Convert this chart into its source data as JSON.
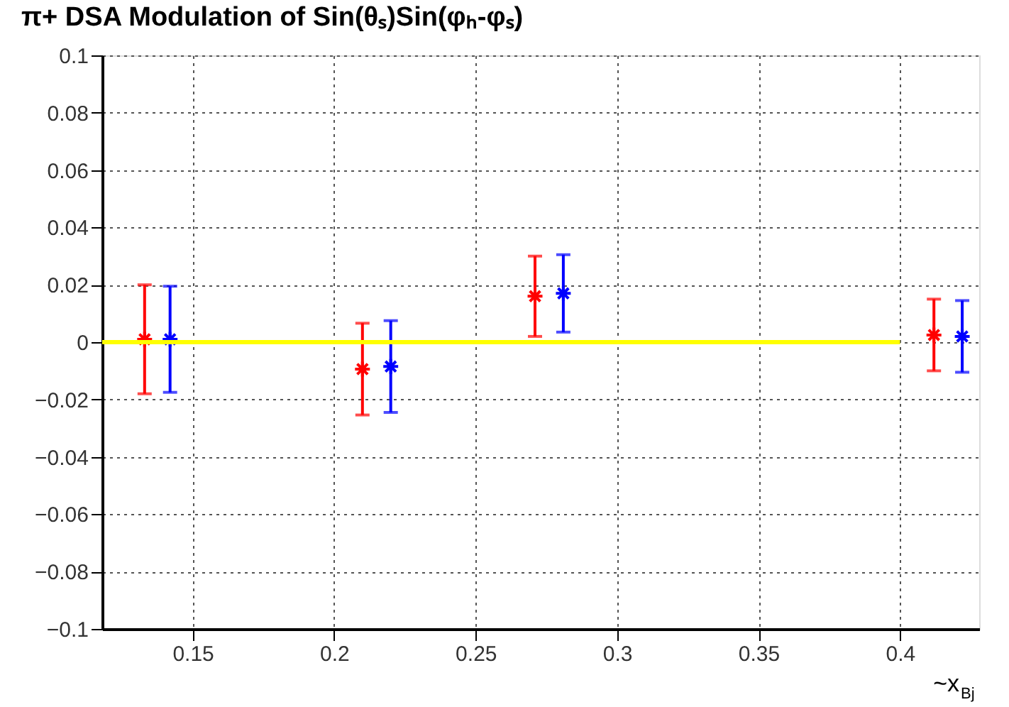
{
  "chart_data": {
    "type": "scatter",
    "title": "π+ DSA Modulation of Sin(θₛ)Sin(φₕ-φₛ)",
    "xlabel": "~x$_{Bj}$",
    "xlim": [
      0.118,
      0.428
    ],
    "xticks": [
      0.15,
      0.2,
      0.25,
      0.3,
      0.35,
      0.4
    ],
    "ylim": [
      -0.1,
      0.1
    ],
    "yticks": [
      -0.1,
      -0.08,
      -0.06,
      -0.04,
      -0.02,
      0,
      0.02,
      0.04,
      0.06,
      0.08,
      0.1
    ],
    "grid": true,
    "marker": "cross",
    "series": [
      {
        "color": "#ff0000",
        "x": [
          0.133,
          0.21,
          0.271,
          0.412
        ],
        "values": [
          0.001,
          -0.0094,
          0.016,
          0.0025
        ],
        "errors": [
          0.019,
          0.016,
          0.014,
          0.0125
        ]
      },
      {
        "color": "#0000ff",
        "x": [
          0.142,
          0.22,
          0.281,
          0.422
        ],
        "values": [
          0.001,
          -0.0085,
          0.017,
          0.002
        ],
        "errors": [
          0.0185,
          0.016,
          0.0135,
          0.0125
        ]
      },
      {
        "type": "line",
        "marker": "none",
        "line_style": "solid",
        "color": "#ffff00",
        "x": [
          0.118,
          0.4
        ],
        "values": [
          0,
          0
        ]
      }
    ]
  }
}
